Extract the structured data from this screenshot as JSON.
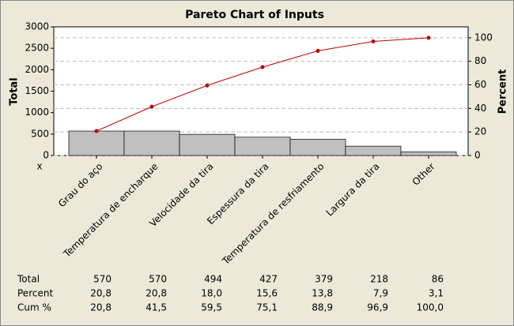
{
  "chart_data": {
    "type": "pareto",
    "title": "Pareto Chart of Inputs",
    "y_label": "Total",
    "y2_label": "Percent",
    "x_label": "x",
    "categories": [
      "Grau do aço",
      "Temperatura de encharque",
      "Velocidade da tira",
      "Espessura da tira",
      "Temperatura de resfriamento",
      "Largura da tira",
      "Other"
    ],
    "series": [
      {
        "name": "Total",
        "color": "#c0c0c0",
        "values": [
          570,
          570,
          494,
          427,
          379,
          218,
          86
        ]
      },
      {
        "name": "Percent",
        "values": [
          20.8,
          20.8,
          18.0,
          15.6,
          13.8,
          7.9,
          3.1
        ],
        "value_labels": [
          "20,8",
          "20,8",
          "18,0",
          "15,6",
          "13,8",
          "7,9",
          "3,1"
        ]
      },
      {
        "name": "Cum %",
        "axis": "y2",
        "color": "#c00000",
        "values": [
          20.8,
          41.5,
          59.5,
          75.1,
          88.9,
          96.9,
          100.0
        ],
        "value_labels": [
          "20,8",
          "41,5",
          "59,5",
          "75,1",
          "88,9",
          "96,9",
          "100,0"
        ]
      }
    ],
    "ylim": [
      0,
      3000
    ],
    "yticks": [
      0,
      500,
      1000,
      1500,
      2000,
      2500,
      3000
    ],
    "y2lim": [
      0,
      109.3
    ],
    "y2ticks": [
      0,
      20,
      40,
      60,
      80,
      100
    ],
    "grid": true
  }
}
